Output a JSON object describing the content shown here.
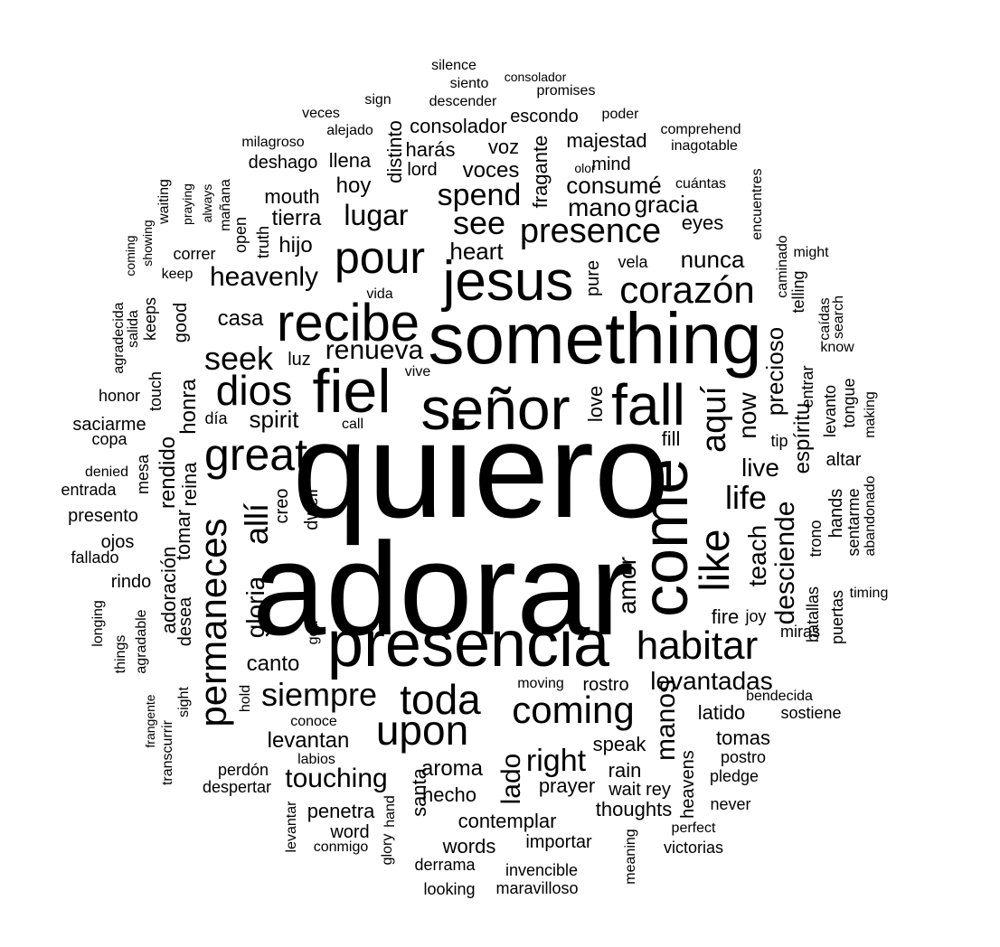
{
  "wordcloud": {
    "text_color": "#000000",
    "background": "#ffffff",
    "words": [
      {
        "text": "quiero",
        "vertical": false
      },
      {
        "text": "adorar",
        "vertical": false
      },
      {
        "text": "something",
        "vertical": false
      },
      {
        "text": "presencia",
        "vertical": false
      },
      {
        "text": "señor",
        "vertical": false
      },
      {
        "text": "fiel",
        "vertical": false
      },
      {
        "text": "jesus",
        "vertical": false
      },
      {
        "text": "recibe",
        "vertical": false
      },
      {
        "text": "come",
        "vertical": true
      },
      {
        "text": "fall",
        "vertical": false
      },
      {
        "text": "pour",
        "vertical": false
      },
      {
        "text": "great",
        "vertical": false
      },
      {
        "text": "dios",
        "vertical": false
      },
      {
        "text": "permaneces",
        "vertical": true
      },
      {
        "text": "upon",
        "vertical": false
      },
      {
        "text": "toda",
        "vertical": false
      },
      {
        "text": "coming",
        "vertical": false
      },
      {
        "text": "habitar",
        "vertical": false
      },
      {
        "text": "like",
        "vertical": true
      },
      {
        "text": "aquí",
        "vertical": true
      },
      {
        "text": "presence",
        "vertical": false
      },
      {
        "text": "corazón",
        "vertical": false
      },
      {
        "text": "siempre",
        "vertical": false
      },
      {
        "text": "allí",
        "vertical": true
      },
      {
        "text": "life",
        "vertical": false
      },
      {
        "text": "see",
        "vertical": false
      },
      {
        "text": "seek",
        "vertical": false
      },
      {
        "text": "spend",
        "vertical": false
      },
      {
        "text": "lugar",
        "vertical": false
      },
      {
        "text": "heavenly",
        "vertical": false
      },
      {
        "text": "renueva",
        "vertical": false
      },
      {
        "text": "live",
        "vertical": false
      },
      {
        "text": "gloria",
        "vertical": true
      },
      {
        "text": "now",
        "vertical": true
      },
      {
        "text": "desciende",
        "vertical": true
      },
      {
        "text": "teach",
        "vertical": true
      },
      {
        "text": "amor",
        "vertical": true
      },
      {
        "text": "levantadas",
        "vertical": false
      },
      {
        "text": "manos",
        "vertical": true
      },
      {
        "text": "right",
        "vertical": false
      },
      {
        "text": "touching",
        "vertical": false
      },
      {
        "text": "lado",
        "vertical": true
      },
      {
        "text": "heart",
        "vertical": false
      },
      {
        "text": "mano",
        "vertical": false
      },
      {
        "text": "gracia",
        "vertical": false
      },
      {
        "text": "consumé",
        "vertical": false
      },
      {
        "text": "nunca",
        "vertical": false
      },
      {
        "text": "precioso",
        "vertical": true
      },
      {
        "text": "espíritu",
        "vertical": true
      },
      {
        "text": "spirit",
        "vertical": false
      },
      {
        "text": "casa",
        "vertical": false
      },
      {
        "text": "hijo",
        "vertical": false
      },
      {
        "text": "tierra",
        "vertical": false
      },
      {
        "text": "mouth",
        "vertical": false
      },
      {
        "text": "hoy",
        "vertical": false
      },
      {
        "text": "voces",
        "vertical": false
      },
      {
        "text": "voz",
        "vertical": false
      },
      {
        "text": "mind",
        "vertical": false
      },
      {
        "text": "majestad",
        "vertical": false
      },
      {
        "text": "consolador",
        "vertical": false
      },
      {
        "text": "escondo",
        "vertical": false
      },
      {
        "text": "harás",
        "vertical": false
      },
      {
        "text": "lord",
        "vertical": false
      },
      {
        "text": "llena",
        "vertical": false
      },
      {
        "text": "deshago",
        "vertical": false
      },
      {
        "text": "distinto",
        "vertical": true
      },
      {
        "text": "fragante",
        "vertical": true
      },
      {
        "text": "eyes",
        "vertical": false
      },
      {
        "text": "pure",
        "vertical": true
      },
      {
        "text": "love",
        "vertical": true
      },
      {
        "text": "honra",
        "vertical": true
      },
      {
        "text": "rendido",
        "vertical": true
      },
      {
        "text": "reina",
        "vertical": true
      },
      {
        "text": "tomar",
        "vertical": true
      },
      {
        "text": "adoración",
        "vertical": true
      },
      {
        "text": "desea",
        "vertical": true
      },
      {
        "text": "canto",
        "vertical": false
      },
      {
        "text": "levantan",
        "vertical": false
      },
      {
        "text": "aroma",
        "vertical": false
      },
      {
        "text": "prayer",
        "vertical": false
      },
      {
        "text": "rain",
        "vertical": false
      },
      {
        "text": "speak",
        "vertical": false
      },
      {
        "text": "latido",
        "vertical": false
      },
      {
        "text": "tomas",
        "vertical": false
      },
      {
        "text": "fire",
        "vertical": false
      },
      {
        "text": "hecho",
        "vertical": false
      },
      {
        "text": "santa",
        "vertical": true
      },
      {
        "text": "penetra",
        "vertical": false
      },
      {
        "text": "contemplar",
        "vertical": false
      },
      {
        "text": "thoughts",
        "vertical": false
      },
      {
        "text": "words",
        "vertical": false
      },
      {
        "text": "importar",
        "vertical": false
      },
      {
        "text": "heavens",
        "vertical": true
      },
      {
        "text": "hands",
        "vertical": true
      },
      {
        "text": "sentarme",
        "vertical": true
      },
      {
        "text": "altar",
        "vertical": false
      },
      {
        "text": "trono",
        "vertical": true
      },
      {
        "text": "batallas",
        "vertical": true
      },
      {
        "text": "miras",
        "vertical": false
      },
      {
        "text": "puertas",
        "vertical": true
      },
      {
        "text": "levanto",
        "vertical": true
      },
      {
        "text": "tongue",
        "vertical": true
      },
      {
        "text": "entrar",
        "vertical": true
      },
      {
        "text": "telling",
        "vertical": true
      },
      {
        "text": "caminado",
        "vertical": true
      },
      {
        "text": "encuentres",
        "vertical": true
      },
      {
        "text": "caídas",
        "vertical": true
      },
      {
        "text": "search",
        "vertical": true
      },
      {
        "text": "know",
        "vertical": false
      },
      {
        "text": "making",
        "vertical": true
      },
      {
        "text": "abandonado",
        "vertical": true
      },
      {
        "text": "timing",
        "vertical": false
      },
      {
        "text": "might",
        "vertical": false
      },
      {
        "text": "tip",
        "vertical": false
      },
      {
        "text": "fill",
        "vertical": false
      },
      {
        "text": "joy",
        "vertical": false
      },
      {
        "text": "vela",
        "vertical": false
      },
      {
        "text": "cuántas",
        "vertical": false
      },
      {
        "text": "olor",
        "vertical": false
      },
      {
        "text": "inagotable",
        "vertical": false
      },
      {
        "text": "comprehend",
        "vertical": false
      },
      {
        "text": "poder",
        "vertical": false
      },
      {
        "text": "promises",
        "vertical": false
      },
      {
        "text": "consolador",
        "vertical": false
      },
      {
        "text": "silence",
        "vertical": false
      },
      {
        "text": "siento",
        "vertical": false
      },
      {
        "text": "descender",
        "vertical": false
      },
      {
        "text": "sign",
        "vertical": false
      },
      {
        "text": "veces",
        "vertical": false
      },
      {
        "text": "alejado",
        "vertical": false
      },
      {
        "text": "milagroso",
        "vertical": false
      },
      {
        "text": "mañana",
        "vertical": true
      },
      {
        "text": "always",
        "vertical": true
      },
      {
        "text": "praying",
        "vertical": true
      },
      {
        "text": "waiting",
        "vertical": true
      },
      {
        "text": "open",
        "vertical": true
      },
      {
        "text": "truth",
        "vertical": true
      },
      {
        "text": "correr",
        "vertical": false
      },
      {
        "text": "keep",
        "vertical": false
      },
      {
        "text": "showing",
        "vertical": true
      },
      {
        "text": "coming",
        "vertical": true
      },
      {
        "text": "vida",
        "vertical": false
      },
      {
        "text": "good",
        "vertical": true
      },
      {
        "text": "keeps",
        "vertical": true
      },
      {
        "text": "salida",
        "vertical": true
      },
      {
        "text": "agradecida",
        "vertical": true
      },
      {
        "text": "luz",
        "vertical": false
      },
      {
        "text": "vive",
        "vertical": false
      },
      {
        "text": "touch",
        "vertical": true
      },
      {
        "text": "honor",
        "vertical": false
      },
      {
        "text": "día",
        "vertical": false
      },
      {
        "text": "saciarme",
        "vertical": false
      },
      {
        "text": "copa",
        "vertical": false
      },
      {
        "text": "call",
        "vertical": false
      },
      {
        "text": "denied",
        "vertical": false
      },
      {
        "text": "mesa",
        "vertical": true
      },
      {
        "text": "entrada",
        "vertical": false
      },
      {
        "text": "presento",
        "vertical": false
      },
      {
        "text": "creo",
        "vertical": true
      },
      {
        "text": "dwell",
        "vertical": true
      },
      {
        "text": "ojos",
        "vertical": false
      },
      {
        "text": "fallado",
        "vertical": false
      },
      {
        "text": "rindo",
        "vertical": false
      },
      {
        "text": "longing",
        "vertical": true
      },
      {
        "text": "things",
        "vertical": true
      },
      {
        "text": "agradable",
        "vertical": true
      },
      {
        "text": "god",
        "vertical": true
      },
      {
        "text": "hold",
        "vertical": true
      },
      {
        "text": "sight",
        "vertical": true
      },
      {
        "text": "frangente",
        "vertical": true
      },
      {
        "text": "transcurrir",
        "vertical": true
      },
      {
        "text": "conoce",
        "vertical": false
      },
      {
        "text": "labios",
        "vertical": false
      },
      {
        "text": "perdón",
        "vertical": false
      },
      {
        "text": "despertar",
        "vertical": false
      },
      {
        "text": "moving",
        "vertical": false
      },
      {
        "text": "rostro",
        "vertical": false
      },
      {
        "text": "bendecida",
        "vertical": false
      },
      {
        "text": "sostiene",
        "vertical": false
      },
      {
        "text": "postro",
        "vertical": false
      },
      {
        "text": "pledge",
        "vertical": false
      },
      {
        "text": "wait",
        "vertical": false
      },
      {
        "text": "rey",
        "vertical": false
      },
      {
        "text": "never",
        "vertical": false
      },
      {
        "text": "perfect",
        "vertical": false
      },
      {
        "text": "victorias",
        "vertical": false
      },
      {
        "text": "meaning",
        "vertical": true
      },
      {
        "text": "invencible",
        "vertical": false
      },
      {
        "text": "maravilloso",
        "vertical": false
      },
      {
        "text": "looking",
        "vertical": false
      },
      {
        "text": "derrama",
        "vertical": false
      },
      {
        "text": "glory",
        "vertical": true
      },
      {
        "text": "hand",
        "vertical": true
      },
      {
        "text": "word",
        "vertical": false
      },
      {
        "text": "conmigo",
        "vertical": false
      },
      {
        "text": "levantar",
        "vertical": true
      }
    ]
  }
}
